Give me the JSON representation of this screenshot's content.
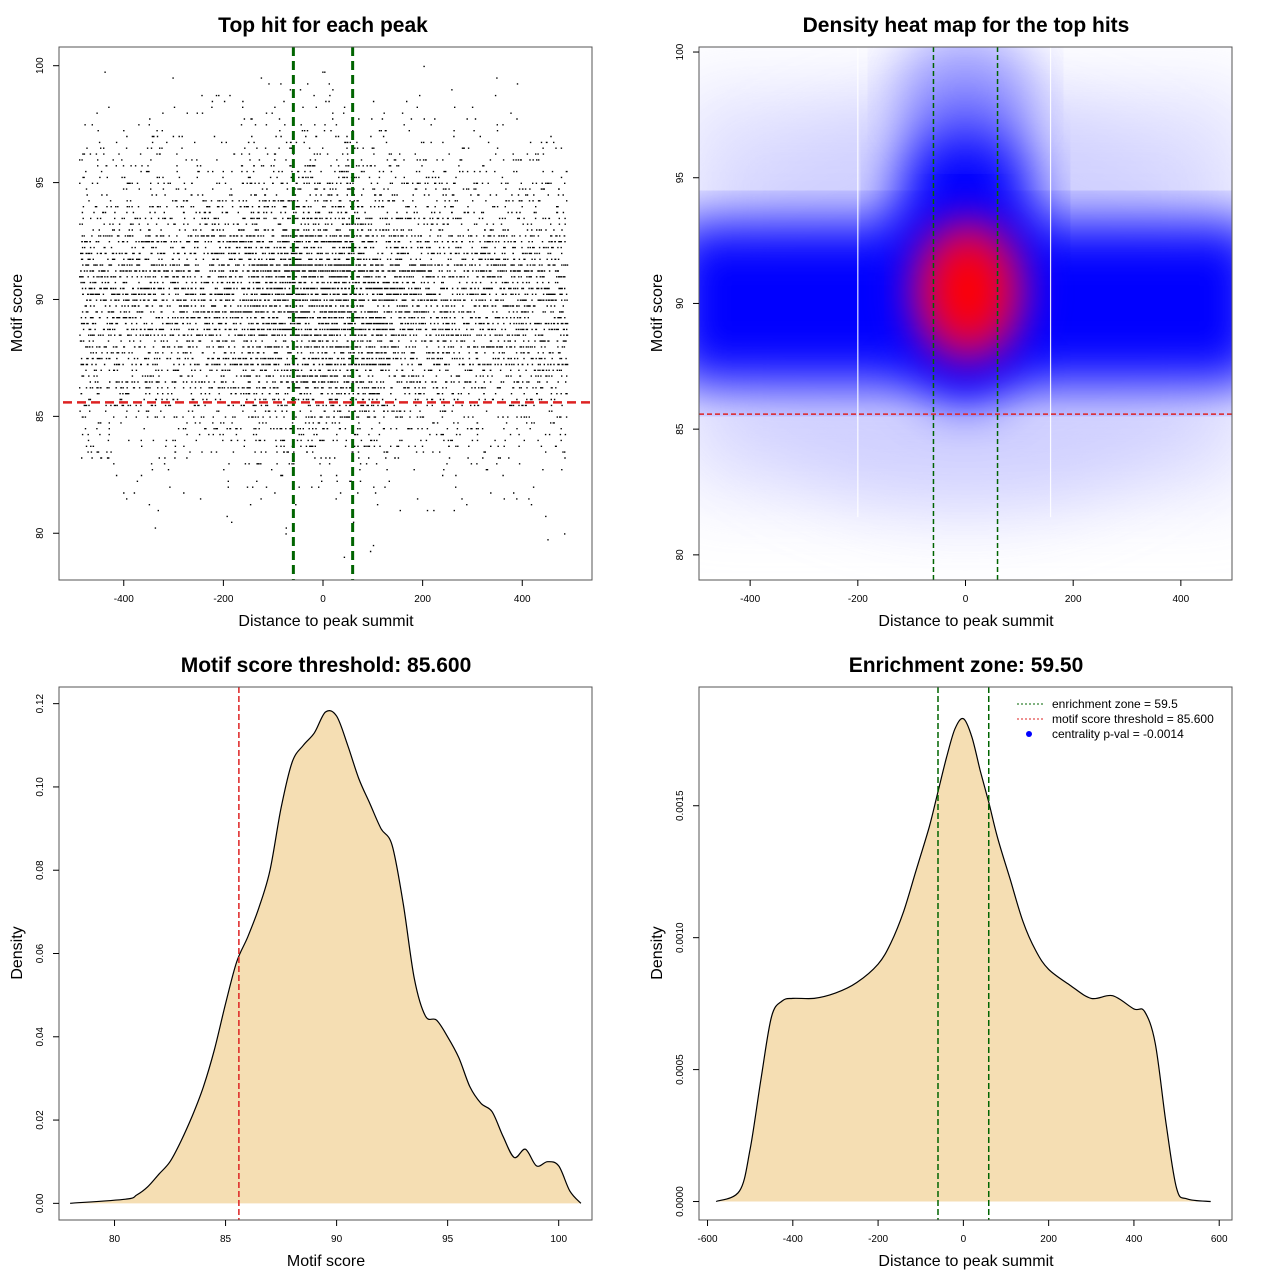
{
  "colors": {
    "green": "#006400",
    "red": "#dd2222",
    "fill": "#f5deb3",
    "heat_low": "#0000ff",
    "heat_high": "#ff0000"
  },
  "panels": {
    "p1": {
      "title": "Top hit for each peak",
      "xlabel": "Distance to peak summit",
      "ylabel": "Motif score"
    },
    "p2": {
      "title": "Density heat map for the top hits",
      "xlabel": "Distance to peak summit",
      "ylabel": "Motif score"
    },
    "p3": {
      "title": "Motif score threshold: 85.600",
      "xlabel": "Motif score",
      "ylabel": "Density"
    },
    "p4": {
      "title": "Enrichment zone: 59.50",
      "xlabel": "Distance to peak summit",
      "ylabel": "Density"
    }
  },
  "legend": {
    "enrichment": "enrichment zone = 59.5",
    "threshold": "motif score threshold = 85.600",
    "pval": "centrality p-val = -0.0014"
  },
  "chart_data": [
    {
      "type": "scatter",
      "title": "Top hit for each peak",
      "xlabel": "Distance to peak summit",
      "ylabel": "Motif score",
      "xlim": [
        -530,
        540
      ],
      "ylim": [
        78,
        100.8
      ],
      "xticks": [
        -400,
        -200,
        0,
        200,
        400
      ],
      "yticks": [
        80,
        85,
        90,
        95,
        100
      ],
      "vlines": [
        -59.5,
        59.5
      ],
      "hline": 85.6,
      "point_summary": {
        "x_range": [
          -490,
          490
        ],
        "y_range": [
          79,
          100
        ],
        "peak_score": 90,
        "approx_points": 10000
      }
    },
    {
      "type": "heatmap",
      "title": "Density heat map for the top hits",
      "xlabel": "Distance to peak summit",
      "ylabel": "Motif score",
      "xlim": [
        -495,
        495
      ],
      "ylim": [
        79,
        100.2
      ],
      "xticks": [
        -400,
        -200,
        0,
        200,
        400
      ],
      "yticks": [
        80,
        85,
        90,
        95,
        100
      ],
      "vlines": [
        -59.5,
        59.5
      ],
      "white_lines": [
        -200,
        158
      ],
      "hline": 85.6,
      "hotspot": {
        "x": 5,
        "y": 90.5
      }
    },
    {
      "type": "area",
      "title": "Motif score threshold: 85.600",
      "xlabel": "Motif score",
      "ylabel": "Density",
      "xlim": [
        77.5,
        101.5
      ],
      "ylim": [
        -0.004,
        0.124
      ],
      "xticks": [
        80,
        85,
        90,
        95,
        100
      ],
      "yticks": [
        0.0,
        0.02,
        0.04,
        0.06,
        0.08,
        0.1,
        0.12
      ],
      "vline": 85.6,
      "x": [
        78.0,
        80.5,
        81.0,
        81.5,
        82.0,
        82.5,
        83.0,
        83.5,
        84.0,
        84.5,
        85.0,
        85.5,
        86.0,
        86.5,
        87.0,
        87.5,
        88.0,
        88.5,
        89.0,
        89.5,
        90.0,
        90.5,
        91.0,
        91.5,
        92.0,
        92.5,
        93.0,
        93.5,
        94.0,
        94.5,
        95.0,
        95.5,
        96.0,
        96.5,
        97.0,
        97.5,
        98.0,
        98.5,
        99.0,
        99.5,
        100.0,
        100.5,
        101.0
      ],
      "y": [
        0.0,
        0.001,
        0.002,
        0.004,
        0.007,
        0.01,
        0.015,
        0.021,
        0.028,
        0.037,
        0.048,
        0.058,
        0.064,
        0.071,
        0.08,
        0.095,
        0.106,
        0.11,
        0.113,
        0.118,
        0.117,
        0.11,
        0.102,
        0.096,
        0.09,
        0.086,
        0.072,
        0.054,
        0.045,
        0.044,
        0.04,
        0.035,
        0.028,
        0.024,
        0.022,
        0.016,
        0.011,
        0.013,
        0.009,
        0.01,
        0.009,
        0.003,
        0.0
      ]
    },
    {
      "type": "area",
      "title": "Enrichment zone: 59.50",
      "xlabel": "Distance to peak summit",
      "ylabel": "Density",
      "xlim": [
        -620,
        630
      ],
      "ylim": [
        -7e-05,
        0.00195
      ],
      "xticks": [
        -600,
        -400,
        -200,
        0,
        200,
        400,
        600
      ],
      "yticks": [
        0.0,
        0.0005,
        0.001,
        0.0015
      ],
      "vlines": [
        -59.5,
        59.5
      ],
      "x": [
        -580,
        -525,
        -500,
        -475,
        -450,
        -425,
        -400,
        -350,
        -300,
        -250,
        -200,
        -170,
        -140,
        -110,
        -80,
        -60,
        -40,
        -20,
        0,
        20,
        40,
        60,
        80,
        110,
        140,
        170,
        200,
        250,
        300,
        350,
        400,
        425,
        450,
        475,
        500,
        525,
        580
      ],
      "y": [
        0.0,
        4e-05,
        0.0002,
        0.00046,
        0.0007,
        0.00076,
        0.00077,
        0.00077,
        0.00079,
        0.00083,
        0.0009,
        0.00098,
        0.0011,
        0.00126,
        0.00142,
        0.00155,
        0.00168,
        0.00179,
        0.00183,
        0.00176,
        0.00163,
        0.00151,
        0.00138,
        0.00122,
        0.00106,
        0.00095,
        0.00088,
        0.00082,
        0.00077,
        0.00078,
        0.00073,
        0.00072,
        0.0006,
        0.0003,
        5e-05,
        1e-05,
        0.0
      ]
    }
  ]
}
